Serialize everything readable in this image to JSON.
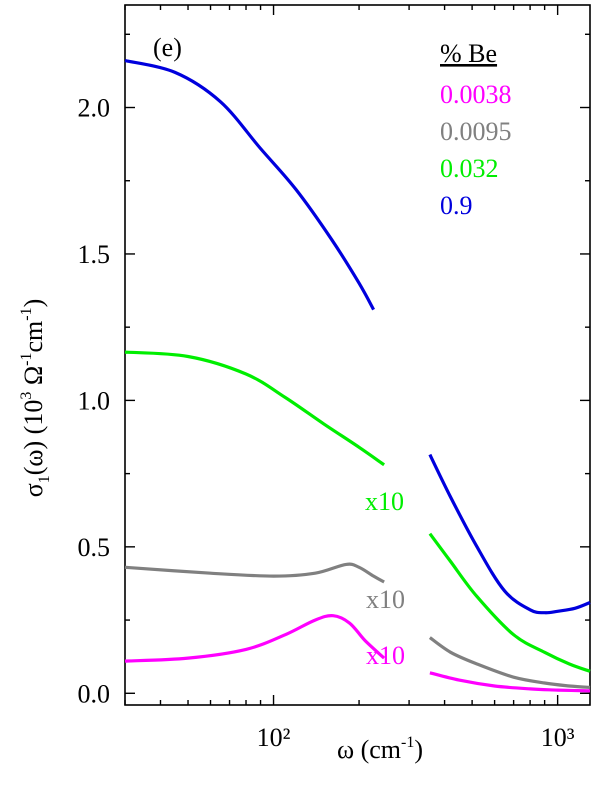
{
  "chart_data": {
    "type": "line",
    "panel_label": "(e)",
    "xlabel": "ω (cm⁻¹)",
    "ylabel": "σ1(ω) (10³ Ω⁻¹ cm⁻¹)",
    "xscale": "log",
    "xlim": [
      30,
      1300
    ],
    "ylim": [
      -0.04,
      2.35
    ],
    "x_ticks": [
      {
        "value": 100,
        "label": "10²"
      },
      {
        "value": 1000,
        "label": "10³"
      }
    ],
    "y_ticks": [
      {
        "value": 0.0,
        "label": "0.0"
      },
      {
        "value": 0.5,
        "label": "0.5"
      },
      {
        "value": 1.0,
        "label": "1.0"
      },
      {
        "value": 1.5,
        "label": "1.5"
      },
      {
        "value": 2.0,
        "label": "2.0"
      }
    ],
    "legend": {
      "title": "% Be",
      "placement": "top-right",
      "entries": [
        "0.0038",
        "0.0095",
        "0.032",
        "0.9"
      ]
    },
    "annotations": [
      {
        "text": "x10",
        "series": "0.032"
      },
      {
        "text": "x10",
        "series": "0.0095"
      },
      {
        "text": "x10",
        "series": "0.0038"
      }
    ],
    "series": [
      {
        "name": "0.0038",
        "color": "#ff00ff",
        "segments": [
          [
            [
              30,
              0.11
            ],
            [
              50,
              0.12
            ],
            [
              80,
              0.15
            ],
            [
              110,
              0.2
            ],
            [
              140,
              0.25
            ],
            [
              162,
              0.265
            ],
            [
              185,
              0.24
            ],
            [
              210,
              0.18
            ],
            [
              245,
              0.12
            ]
          ],
          [
            [
              355,
              0.07
            ],
            [
              450,
              0.045
            ],
            [
              600,
              0.025
            ],
            [
              800,
              0.015
            ],
            [
              1000,
              0.011
            ],
            [
              1300,
              0.008
            ]
          ]
        ]
      },
      {
        "name": "0.0095",
        "color": "#808080",
        "segments": [
          [
            [
              30,
              0.43
            ],
            [
              60,
              0.41
            ],
            [
              100,
              0.4
            ],
            [
              140,
              0.41
            ],
            [
              180,
              0.44
            ],
            [
              200,
              0.43
            ],
            [
              225,
              0.4
            ],
            [
              245,
              0.38
            ]
          ],
          [
            [
              355,
              0.19
            ],
            [
              420,
              0.14
            ],
            [
              520,
              0.1
            ],
            [
              700,
              0.055
            ],
            [
              900,
              0.035
            ],
            [
              1100,
              0.025
            ],
            [
              1300,
              0.02
            ]
          ]
        ]
      },
      {
        "name": "0.032",
        "color": "#00ee00",
        "segments": [
          [
            [
              30,
              1.165
            ],
            [
              50,
              1.15
            ],
            [
              80,
              1.09
            ],
            [
              110,
              1.01
            ],
            [
              150,
              0.92
            ],
            [
              200,
              0.84
            ],
            [
              245,
              0.78
            ]
          ],
          [
            [
              355,
              0.545
            ],
            [
              420,
              0.45
            ],
            [
              520,
              0.33
            ],
            [
              700,
              0.2
            ],
            [
              900,
              0.14
            ],
            [
              1100,
              0.1
            ],
            [
              1300,
              0.075
            ]
          ]
        ]
      },
      {
        "name": "0.9",
        "color": "#0000dd",
        "segments": [
          [
            [
              30,
              2.16
            ],
            [
              45,
              2.12
            ],
            [
              65,
              2.02
            ],
            [
              90,
              1.86
            ],
            [
              120,
              1.72
            ],
            [
              160,
              1.55
            ],
            [
              200,
              1.4
            ],
            [
              225,
              1.31
            ]
          ],
          [
            [
              355,
              0.815
            ],
            [
              420,
              0.67
            ],
            [
              520,
              0.5
            ],
            [
              650,
              0.35
            ],
            [
              800,
              0.285
            ],
            [
              900,
              0.275
            ],
            [
              1000,
              0.28
            ],
            [
              1150,
              0.29
            ],
            [
              1300,
              0.31
            ]
          ]
        ]
      }
    ]
  }
}
